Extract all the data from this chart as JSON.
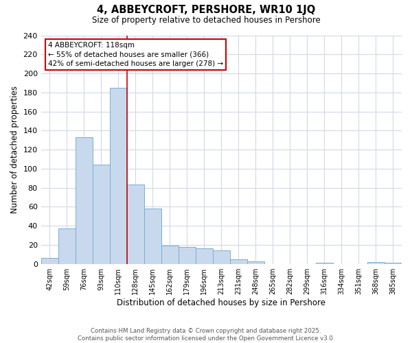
{
  "title": "4, ABBEYCROFT, PERSHORE, WR10 1JQ",
  "subtitle": "Size of property relative to detached houses in Pershore",
  "xlabel": "Distribution of detached houses by size in Pershore",
  "ylabel": "Number of detached properties",
  "bar_labels": [
    "42sqm",
    "59sqm",
    "76sqm",
    "93sqm",
    "110sqm",
    "128sqm",
    "145sqm",
    "162sqm",
    "179sqm",
    "196sqm",
    "213sqm",
    "231sqm",
    "248sqm",
    "265sqm",
    "282sqm",
    "299sqm",
    "316sqm",
    "334sqm",
    "351sqm",
    "368sqm",
    "385sqm"
  ],
  "bar_values": [
    6,
    37,
    133,
    104,
    185,
    83,
    58,
    19,
    18,
    16,
    14,
    5,
    3,
    0,
    0,
    0,
    1,
    0,
    0,
    2,
    1
  ],
  "bar_color": "#c8d9ee",
  "bar_edge_color": "#7aadd4",
  "vline_x": 4.5,
  "vline_color": "#cc0000",
  "annotation_title": "4 ABBEYCROFT: 118sqm",
  "annotation_line1": "← 55% of detached houses are smaller (366)",
  "annotation_line2": "42% of semi-detached houses are larger (278) →",
  "annotation_box_edge": "#cc0000",
  "ylim": [
    0,
    240
  ],
  "yticks": [
    0,
    20,
    40,
    60,
    80,
    100,
    120,
    140,
    160,
    180,
    200,
    220,
    240
  ],
  "footer_line1": "Contains HM Land Registry data © Crown copyright and database right 2025.",
  "footer_line2": "Contains public sector information licensed under the Open Government Licence v3.0.",
  "background_color": "#ffffff",
  "grid_color": "#d0d8e8"
}
